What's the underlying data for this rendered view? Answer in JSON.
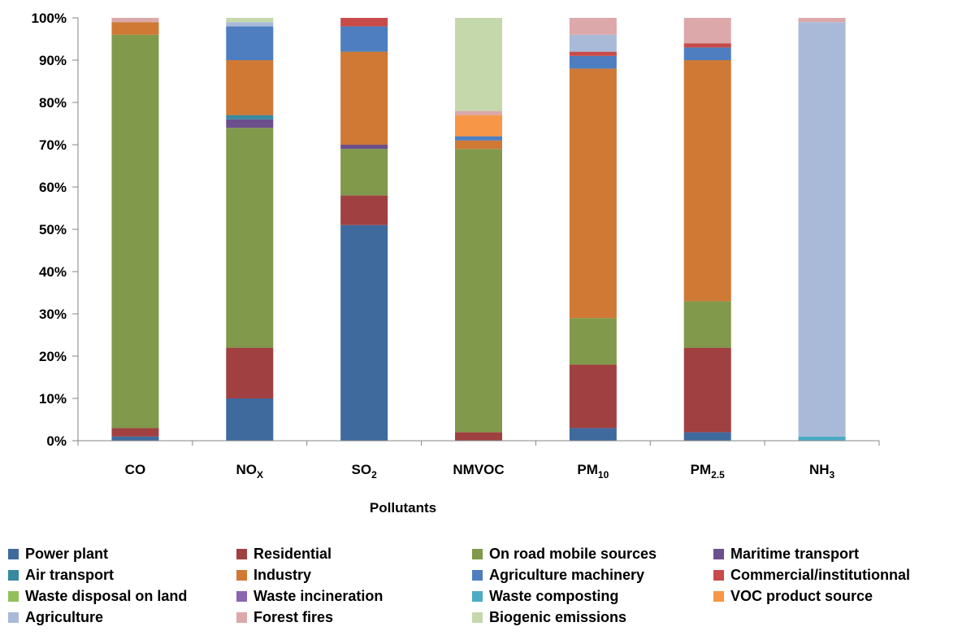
{
  "chart_data": {
    "type": "bar",
    "stacked": true,
    "categories": [
      "CO",
      "NOX",
      "SO2",
      "NMVOC",
      "PM10",
      "PM2.5",
      "NH3"
    ],
    "category_labels": [
      {
        "base": "CO",
        "sub": ""
      },
      {
        "base": "NO",
        "sub": "X"
      },
      {
        "base": "SO",
        "sub": "2"
      },
      {
        "base": "NMVOC",
        "sub": ""
      },
      {
        "base": "PM",
        "sub": "10"
      },
      {
        "base": "PM",
        "sub": "2.5"
      },
      {
        "base": "NH",
        "sub": "3"
      }
    ],
    "xlabel": "Pollutants",
    "ylabel": "",
    "ylim": [
      0,
      100
    ],
    "yticks": [
      "0%",
      "10%",
      "20%",
      "30%",
      "40%",
      "50%",
      "60%",
      "70%",
      "80%",
      "90%",
      "100%"
    ],
    "grid": false,
    "legend_position": "bottom",
    "series": [
      {
        "name": "Power plant",
        "color": "#3F6A9E",
        "values": [
          1,
          10,
          51,
          0,
          3,
          2,
          0
        ]
      },
      {
        "name": "Residential",
        "color": "#A04040",
        "values": [
          2,
          12,
          7,
          2,
          15,
          20,
          0
        ]
      },
      {
        "name": "On road mobile sources",
        "color": "#80994A",
        "values": [
          93,
          52,
          11,
          67,
          11,
          11,
          0
        ]
      },
      {
        "name": "Maritime transport",
        "color": "#6C4F8C",
        "values": [
          0,
          2,
          1,
          0,
          0,
          0,
          0
        ]
      },
      {
        "name": "Air transport",
        "color": "#37899F",
        "values": [
          0,
          1,
          0,
          0,
          0,
          0,
          0
        ]
      },
      {
        "name": "Industry",
        "color": "#CF7935",
        "values": [
          3,
          13,
          22,
          2,
          59,
          57,
          0
        ]
      },
      {
        "name": "Agriculture machinery",
        "color": "#4E7EC0",
        "values": [
          0,
          8,
          6,
          1,
          3,
          3,
          0
        ]
      },
      {
        "name": "Commercial/institutionnal",
        "color": "#C84B49",
        "values": [
          0,
          0,
          2,
          0,
          1,
          1,
          0
        ]
      },
      {
        "name": "Waste disposal on land",
        "color": "#93C05B",
        "values": [
          0,
          0,
          0,
          0,
          0,
          0,
          0
        ]
      },
      {
        "name": "Waste incineration",
        "color": "#8A65B2",
        "values": [
          0,
          0,
          0,
          0,
          0,
          0,
          0
        ]
      },
      {
        "name": "Waste composting",
        "color": "#4BACC6",
        "values": [
          0,
          0,
          0,
          0,
          0,
          0,
          1
        ]
      },
      {
        "name": "VOC product source",
        "color": "#F79646",
        "values": [
          0,
          0,
          0,
          5,
          0,
          0,
          0
        ]
      },
      {
        "name": "Agriculture",
        "color": "#A9BAD9",
        "values": [
          0,
          1,
          0,
          0,
          4,
          0,
          98
        ]
      },
      {
        "name": "Forest fires",
        "color": "#DCA8AA",
        "values": [
          1,
          0,
          0,
          1,
          4,
          6,
          1
        ]
      },
      {
        "name": "Biogenic emissions",
        "color": "#C5D8AC",
        "values": [
          0,
          1,
          0,
          22,
          0,
          0,
          0
        ]
      }
    ]
  }
}
